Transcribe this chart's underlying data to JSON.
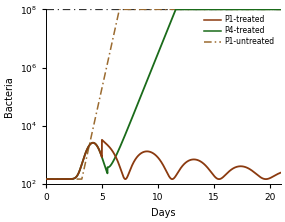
{
  "title": "",
  "xlabel": "Days",
  "ylabel": "Bacteria",
  "xlim": [
    0,
    21
  ],
  "ylim_log": [
    2,
    8
  ],
  "color_p1_treated": "#8B3A0F",
  "color_p4_treated": "#1A6B1A",
  "color_p1_untreated": "#9B6B30",
  "color_threshold": "#333333",
  "legend_labels": [
    "P1-treated",
    "P4-treated",
    "P1-untreated"
  ],
  "threshold": 100000000.0,
  "background_color": "#ffffff",
  "figsize": [
    2.85,
    2.22
  ],
  "dpi": 100
}
